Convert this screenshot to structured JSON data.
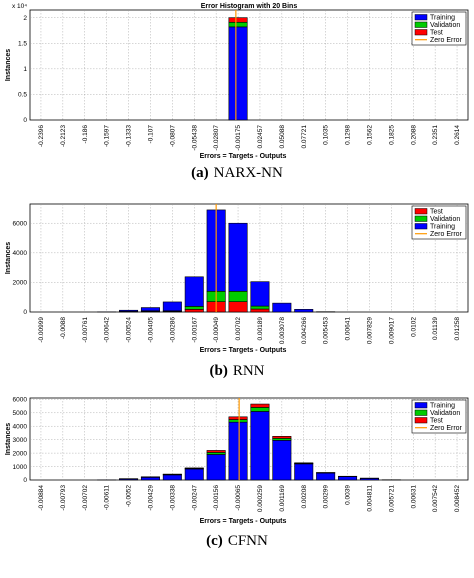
{
  "chart_data": [
    {
      "type": "bar",
      "title": "Error Histogram with 20 Bins",
      "xlabel": "Errors = Targets - Outputs",
      "ylabel": "Instances",
      "y_multiplier": "x 10⁴",
      "caption_letter": "(a)",
      "caption_text": "NARX-NN",
      "categories": [
        "-0.2396",
        "-0.2123",
        "-0.186",
        "-0.1597",
        "-0.1333",
        "-0.107",
        "-0.0807",
        "-0.05438",
        "-0.02807",
        "-0.00175",
        "0.02457",
        "0.05088",
        "0.07721",
        "0.1035",
        "0.1298",
        "0.1562",
        "0.1825",
        "0.2088",
        "0.2351",
        "0.2614"
      ],
      "yticks": [
        "0",
        "0.5",
        "1",
        "1.5",
        "2"
      ],
      "ylim": [
        0,
        2.15
      ],
      "series": [
        {
          "name": "Training",
          "color": "#0000ff",
          "values": [
            0,
            0,
            0,
            0,
            0,
            0,
            0,
            0,
            0,
            1.82,
            0,
            0,
            0,
            0,
            0,
            0,
            0,
            0,
            0,
            0
          ]
        },
        {
          "name": "Validation",
          "color": "#00cc00",
          "values": [
            0,
            0,
            0,
            0,
            0,
            0,
            0,
            0,
            0,
            0.09,
            0,
            0,
            0,
            0,
            0,
            0,
            0,
            0,
            0,
            0
          ]
        },
        {
          "name": "Test",
          "color": "#ff0000",
          "values": [
            0,
            0,
            0,
            0,
            0,
            0,
            0,
            0,
            0,
            0.09,
            0,
            0,
            0,
            0,
            0,
            0,
            0,
            0,
            0,
            0
          ]
        }
      ],
      "zero_error": {
        "name": "Zero Error",
        "color": "#ff9900",
        "position": 9.4
      },
      "legend": "top-right",
      "grid": true
    },
    {
      "type": "bar",
      "title": "",
      "xlabel": "Errors = Targets - Outputs",
      "ylabel": "Instances",
      "caption_letter": "(b)",
      "caption_text": "RNN",
      "categories": [
        "-0.00999",
        "-0.0088",
        "-0.00761",
        "-0.00642",
        "-0.00524",
        "-0.00405",
        "-0.00286",
        "-0.00167",
        "-0.00049",
        "0.00702",
        "0.00189",
        "0.003078",
        "0.004266",
        "0.005453",
        "0.00641",
        "0.007829",
        "0.009017",
        "0.0102",
        "0.01139",
        "0.01258"
      ],
      "yticks": [
        "0",
        "2000",
        "4000",
        "6000"
      ],
      "ylim": [
        0,
        7300
      ],
      "series": [
        {
          "name": "Test",
          "color": "#ff0000",
          "values": [
            0,
            0,
            0,
            0,
            20,
            40,
            40,
            180,
            700,
            700,
            200,
            0,
            0,
            0,
            0,
            0,
            0,
            0,
            0,
            0
          ]
        },
        {
          "name": "Validation",
          "color": "#00cc00",
          "values": [
            0,
            0,
            0,
            0,
            20,
            40,
            40,
            200,
            700,
            700,
            200,
            0,
            0,
            0,
            0,
            0,
            0,
            0,
            0,
            0
          ]
        },
        {
          "name": "Training",
          "color": "#0000ff",
          "values": [
            0,
            0,
            0,
            10,
            80,
            220,
            600,
            2000,
            5500,
            4600,
            1650,
            600,
            180,
            20,
            0,
            0,
            0,
            0,
            0,
            0
          ]
        }
      ],
      "zero_error": {
        "name": "Zero Error",
        "color": "#ff9900",
        "position": 8.5
      },
      "legend": "top-right",
      "grid": true
    },
    {
      "type": "bar",
      "title": "",
      "xlabel": "Errors = Targets - Outputs",
      "ylabel": "Instances",
      "caption_letter": "(c)",
      "caption_text": "CFNN",
      "categories": [
        "-0.00884",
        "-0.00793",
        "-0.00702",
        "-0.00611",
        "-0.0052",
        "-0.00429",
        "-0.00338",
        "-0.00247",
        "-0.00156",
        "-0.00065",
        "0.000259",
        "0.001169",
        "0.00208",
        "0.00299",
        "0.0039",
        "0.004811",
        "0.005721",
        "0.00631",
        "0.007542",
        "0.008452"
      ],
      "yticks": [
        "0",
        "1000",
        "2000",
        "3000",
        "4000",
        "5000",
        "6000"
      ],
      "ylim": [
        0,
        6100
      ],
      "series": [
        {
          "name": "Training",
          "color": "#0000ff",
          "values": [
            0,
            0,
            0,
            10,
            80,
            200,
            380,
            820,
            1900,
            4300,
            5100,
            2950,
            1200,
            520,
            260,
            120,
            20,
            0,
            0,
            0
          ]
        },
        {
          "name": "Validation",
          "color": "#00cc00",
          "values": [
            0,
            0,
            0,
            0,
            10,
            20,
            30,
            40,
            150,
            200,
            300,
            150,
            40,
            20,
            10,
            10,
            0,
            0,
            0,
            0
          ]
        },
        {
          "name": "Test",
          "color": "#ff0000",
          "values": [
            0,
            0,
            0,
            0,
            10,
            20,
            30,
            40,
            150,
            200,
            250,
            150,
            40,
            20,
            10,
            10,
            0,
            0,
            0,
            0
          ]
        }
      ],
      "zero_error": {
        "name": "Zero Error",
        "color": "#ff9900",
        "position": 9.55
      },
      "legend": "top-right",
      "grid": true
    }
  ]
}
